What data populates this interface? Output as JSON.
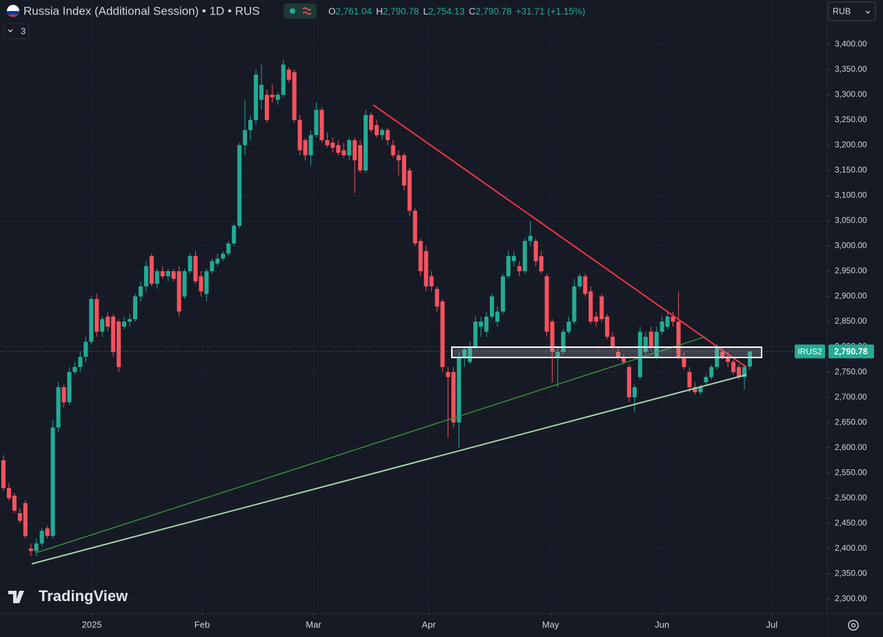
{
  "header": {
    "symbol": "Russia Index (Additional Session) • 1D • RUS",
    "ohlc": [
      [
        "O",
        "2,761.04"
      ],
      [
        "H",
        "2,790.78"
      ],
      [
        "L",
        "2,754.13"
      ],
      [
        "C",
        "2,790.78"
      ]
    ],
    "change": "+31.71 (+1.15%)",
    "indicators": "3",
    "currency": "RUB",
    "brand": "TradingView"
  },
  "price_label": {
    "name": "IRUS2",
    "value": "2,790.78"
  },
  "chart_data": {
    "type": "candlestick",
    "up_color": "#22ab94",
    "down_color": "#f7525f",
    "ylim": [
      2271,
      3488
    ],
    "yticks": [
      {
        "value": 2300,
        "label": "2,300.00"
      },
      {
        "value": 2350,
        "label": "2,350.00"
      },
      {
        "value": 2400,
        "label": "2,400.00"
      },
      {
        "value": 2450,
        "label": "2,450.00"
      },
      {
        "value": 2500,
        "label": "2,500.00"
      },
      {
        "value": 2550,
        "label": "2,550.00"
      },
      {
        "value": 2600,
        "label": "2,600.00"
      },
      {
        "value": 2650,
        "label": "2,650.00"
      },
      {
        "value": 2700,
        "label": "2,700.00"
      },
      {
        "value": 2750,
        "label": "2,750.00"
      },
      {
        "value": 2800,
        "label": "2,800.00"
      },
      {
        "value": 2850,
        "label": "2,850.00"
      },
      {
        "value": 2900,
        "label": "2,900.00"
      },
      {
        "value": 2950,
        "label": "2,950.00"
      },
      {
        "value": 3000,
        "label": "3,000.00"
      },
      {
        "value": 3050,
        "label": "3,050.00"
      },
      {
        "value": 3100,
        "label": "3,100.00"
      },
      {
        "value": 3150,
        "label": "3,150.00"
      },
      {
        "value": 3200,
        "label": "3,200.00"
      },
      {
        "value": 3250,
        "label": "3,250.00"
      },
      {
        "value": 3300,
        "label": "3,300.00"
      },
      {
        "value": 3350,
        "label": "3,350.00"
      },
      {
        "value": 3400,
        "label": "3,400.00"
      }
    ],
    "xlim": [
      -0.6,
      150
    ],
    "xticks": [
      {
        "value": 16.1,
        "label": "2025"
      },
      {
        "value": 36.2,
        "label": "Feb"
      },
      {
        "value": 56.5,
        "label": "Mar"
      },
      {
        "value": 77.5,
        "label": "Apr"
      },
      {
        "value": 99.7,
        "label": "May"
      },
      {
        "value": 120,
        "label": "Jun"
      },
      {
        "value": 140,
        "label": "Jul"
      }
    ],
    "candles": [
      [
        2575,
        2585,
        2515,
        2520
      ],
      [
        2520,
        2530,
        2495,
        2500
      ],
      [
        2505,
        2510,
        2470,
        2475
      ],
      [
        2470,
        2480,
        2450,
        2455
      ],
      [
        2490,
        2495,
        2420,
        2425
      ],
      [
        2400,
        2410,
        2385,
        2395
      ],
      [
        2395,
        2420,
        2385,
        2410
      ],
      [
        2410,
        2440,
        2405,
        2435
      ],
      [
        2440,
        2445,
        2420,
        2425
      ],
      [
        2425,
        2655,
        2420,
        2640
      ],
      [
        2640,
        2730,
        2630,
        2720
      ],
      [
        2720,
        2725,
        2680,
        2690
      ],
      [
        2690,
        2760,
        2685,
        2750
      ],
      [
        2750,
        2770,
        2745,
        2760
      ],
      [
        2760,
        2790,
        2750,
        2780
      ],
      [
        2780,
        2820,
        2770,
        2810
      ],
      [
        2810,
        2900,
        2805,
        2895
      ],
      [
        2895,
        2905,
        2820,
        2830
      ],
      [
        2830,
        2860,
        2820,
        2855
      ],
      [
        2860,
        2870,
        2830,
        2840
      ],
      [
        2860,
        2865,
        2780,
        2790
      ],
      [
        2850,
        2855,
        2750,
        2760
      ],
      [
        2840,
        2860,
        2835,
        2850
      ],
      [
        2850,
        2865,
        2840,
        2855
      ],
      [
        2855,
        2905,
        2850,
        2900
      ],
      [
        2900,
        2930,
        2890,
        2920
      ],
      [
        2920,
        2970,
        2910,
        2960
      ],
      [
        2980,
        2985,
        2920,
        2925
      ],
      [
        2925,
        2955,
        2915,
        2950
      ],
      [
        2950,
        2960,
        2935,
        2940
      ],
      [
        2940,
        2955,
        2930,
        2950
      ],
      [
        2950,
        2955,
        2930,
        2935
      ],
      [
        2950,
        2960,
        2860,
        2870
      ],
      [
        2900,
        2955,
        2895,
        2950
      ],
      [
        2950,
        2985,
        2945,
        2980
      ],
      [
        2980,
        2990,
        2925,
        2930
      ],
      [
        2940,
        2950,
        2900,
        2910
      ],
      [
        2905,
        2955,
        2890,
        2950
      ],
      [
        2950,
        2975,
        2945,
        2970
      ],
      [
        2965,
        2985,
        2960,
        2975
      ],
      [
        2975,
        2990,
        2970,
        2985
      ],
      [
        2985,
        3010,
        2980,
        3005
      ],
      [
        3005,
        3045,
        3000,
        3040
      ],
      [
        3040,
        3205,
        3035,
        3200
      ],
      [
        3200,
        3290,
        3180,
        3230
      ],
      [
        3230,
        3260,
        3210,
        3250
      ],
      [
        3250,
        3350,
        3240,
        3340
      ],
      [
        3290,
        3360,
        3270,
        3320
      ],
      [
        3300,
        3310,
        3245,
        3250
      ],
      [
        3300,
        3320,
        3285,
        3295
      ],
      [
        3290,
        3305,
        3280,
        3300
      ],
      [
        3300,
        3370,
        3295,
        3360
      ],
      [
        3350,
        3355,
        3325,
        3330
      ],
      [
        3345,
        3350,
        3245,
        3250
      ],
      [
        3250,
        3260,
        3180,
        3190
      ],
      [
        3210,
        3215,
        3170,
        3180
      ],
      [
        3180,
        3230,
        3160,
        3220
      ],
      [
        3220,
        3285,
        3215,
        3270
      ],
      [
        3270,
        3275,
        3205,
        3210
      ],
      [
        3210,
        3225,
        3195,
        3200
      ],
      [
        3205,
        3215,
        3185,
        3195
      ],
      [
        3200,
        3210,
        3180,
        3185
      ],
      [
        3190,
        3205,
        3175,
        3180
      ],
      [
        3180,
        3215,
        3170,
        3210
      ],
      [
        3210,
        3215,
        3105,
        3170
      ],
      [
        3200,
        3210,
        3145,
        3150
      ],
      [
        3150,
        3270,
        3145,
        3260
      ],
      [
        3260,
        3265,
        3225,
        3230
      ],
      [
        3240,
        3250,
        3215,
        3220
      ],
      [
        3220,
        3235,
        3210,
        3230
      ],
      [
        3230,
        3235,
        3200,
        3210
      ],
      [
        3200,
        3210,
        3175,
        3180
      ],
      [
        3180,
        3190,
        3140,
        3170
      ],
      [
        3180,
        3185,
        3110,
        3120
      ],
      [
        3150,
        3155,
        3060,
        3070
      ],
      [
        3070,
        3075,
        3000,
        3005
      ],
      [
        3010,
        3015,
        2940,
        2950
      ],
      [
        2990,
        3000,
        2910,
        2920
      ],
      [
        2940,
        2950,
        2910,
        2920
      ],
      [
        2915,
        2920,
        2870,
        2880
      ],
      [
        2890,
        2895,
        2750,
        2760
      ],
      [
        2750,
        2760,
        2620,
        2740
      ],
      [
        2750,
        2760,
        2640,
        2650
      ],
      [
        2650,
        2790,
        2600,
        2780
      ],
      [
        2780,
        2800,
        2760,
        2795
      ],
      [
        2770,
        2810,
        2765,
        2800
      ],
      [
        2800,
        2860,
        2795,
        2850
      ],
      [
        2840,
        2860,
        2820,
        2850
      ],
      [
        2830,
        2870,
        2820,
        2860
      ],
      [
        2860,
        2905,
        2855,
        2900
      ],
      [
        2850,
        2880,
        2840,
        2870
      ],
      [
        2870,
        2945,
        2865,
        2940
      ],
      [
        2940,
        2990,
        2935,
        2980
      ],
      [
        2970,
        2990,
        2960,
        2980
      ],
      [
        2960,
        2970,
        2940,
        2950
      ],
      [
        2950,
        3015,
        2945,
        3010
      ],
      [
        3010,
        3050,
        3000,
        3020
      ],
      [
        3010,
        3015,
        2960,
        2970
      ],
      [
        2980,
        2990,
        2945,
        2950
      ],
      [
        2940,
        2945,
        2820,
        2830
      ],
      [
        2850,
        2855,
        2730,
        2790
      ],
      [
        2780,
        2800,
        2720,
        2790
      ],
      [
        2790,
        2835,
        2785,
        2830
      ],
      [
        2830,
        2860,
        2825,
        2850
      ],
      [
        2850,
        2935,
        2845,
        2920
      ],
      [
        2920,
        2945,
        2915,
        2940
      ],
      [
        2940,
        2945,
        2900,
        2905
      ],
      [
        2910,
        2920,
        2845,
        2850
      ],
      [
        2860,
        2870,
        2840,
        2850
      ],
      [
        2900,
        2905,
        2850,
        2855
      ],
      [
        2860,
        2865,
        2815,
        2820
      ],
      [
        2820,
        2830,
        2795,
        2800
      ],
      [
        2790,
        2800,
        2775,
        2780
      ],
      [
        2780,
        2785,
        2765,
        2770
      ],
      [
        2760,
        2765,
        2690,
        2700
      ],
      [
        2700,
        2725,
        2670,
        2720
      ],
      [
        2740,
        2840,
        2735,
        2830
      ],
      [
        2790,
        2830,
        2785,
        2820
      ],
      [
        2830,
        2840,
        2795,
        2800
      ],
      [
        2780,
        2840,
        2775,
        2830
      ],
      [
        2830,
        2860,
        2825,
        2850
      ],
      [
        2840,
        2870,
        2835,
        2860
      ],
      [
        2860,
        2870,
        2840,
        2850
      ],
      [
        2850,
        2910,
        2775,
        2780
      ],
      [
        2780,
        2790,
        2755,
        2760
      ],
      [
        2750,
        2760,
        2710,
        2720
      ],
      [
        2720,
        2730,
        2705,
        2710
      ],
      [
        2710,
        2725,
        2705,
        2720
      ],
      [
        2730,
        2745,
        2725,
        2740
      ],
      [
        2740,
        2765,
        2735,
        2760
      ],
      [
        2760,
        2805,
        2755,
        2800
      ],
      [
        2790,
        2800,
        2775,
        2780
      ],
      [
        2780,
        2790,
        2760,
        2770
      ],
      [
        2770,
        2775,
        2745,
        2750
      ],
      [
        2760,
        2765,
        2735,
        2740
      ],
      [
        2740,
        2765,
        2715,
        2760
      ],
      [
        2761,
        2790.78,
        2754.13,
        2790.78
      ]
    ]
  }
}
